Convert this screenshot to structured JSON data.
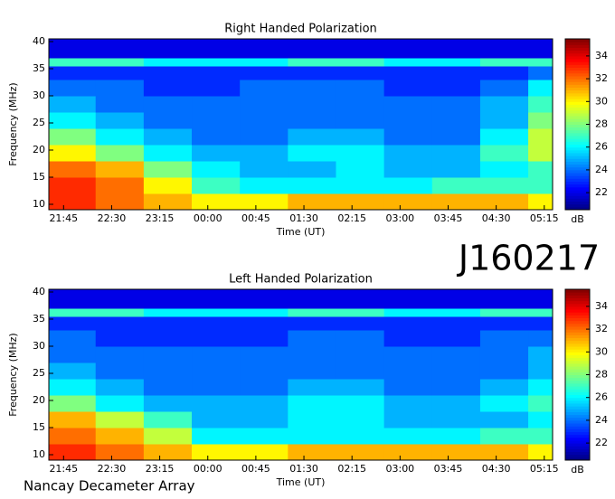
{
  "observation_id": "J160217",
  "instrument": "Nancay Decameter Array",
  "chart_data": [
    {
      "type": "heatmap",
      "title": "Right Handed Polarization",
      "xlabel": "Time (UT)",
      "ylabel": "Frequency (MHz)",
      "colorbar_label": "dB",
      "x_bins": [
        21.52,
        22.25,
        23.0,
        23.75,
        24.5,
        25.25,
        26.0,
        26.75,
        27.5,
        28.25,
        29.0,
        29.38
      ],
      "y_bins": [
        9,
        12,
        15,
        18,
        21,
        24,
        27,
        30,
        33,
        35.5,
        37,
        40.5
      ],
      "z": [
        [
          33,
          32,
          31,
          30,
          30,
          31,
          31,
          31,
          31,
          31,
          30
        ],
        [
          33,
          32,
          30,
          27,
          26,
          26,
          26,
          26,
          27,
          27,
          27
        ],
        [
          32,
          31,
          28,
          26,
          25,
          25,
          26,
          25,
          25,
          26,
          27
        ],
        [
          30,
          28,
          26,
          25,
          25,
          26,
          26,
          25,
          25,
          27,
          29
        ],
        [
          28,
          26,
          25,
          24,
          24,
          25,
          25,
          24,
          24,
          26,
          29
        ],
        [
          26,
          25,
          24,
          24,
          24,
          24,
          24,
          24,
          24,
          25,
          28
        ],
        [
          25,
          24,
          24,
          24,
          24,
          24,
          24,
          24,
          24,
          25,
          27
        ],
        [
          24,
          24,
          23,
          23,
          24,
          24,
          24,
          23,
          23,
          24,
          26
        ],
        [
          23,
          23,
          23,
          23,
          23,
          23,
          23,
          23,
          23,
          23,
          24
        ],
        [
          27,
          27,
          26,
          26,
          26,
          27,
          27,
          26,
          26,
          27,
          27
        ],
        [
          22,
          22,
          22,
          22,
          22,
          22,
          22,
          22,
          22,
          22,
          22
        ]
      ],
      "xlim": [
        21.52,
        29.38
      ],
      "ylim": [
        9,
        40.5
      ],
      "zlim": [
        20.5,
        35.5
      ],
      "xticks": [
        {
          "value": 21.75,
          "label": "21:45"
        },
        {
          "value": 22.5,
          "label": "22:30"
        },
        {
          "value": 23.25,
          "label": "23:15"
        },
        {
          "value": 24.0,
          "label": "00:00"
        },
        {
          "value": 24.75,
          "label": "00:45"
        },
        {
          "value": 25.5,
          "label": "01:30"
        },
        {
          "value": 26.25,
          "label": "02:15"
        },
        {
          "value": 27.0,
          "label": "03:00"
        },
        {
          "value": 27.75,
          "label": "03:45"
        },
        {
          "value": 28.5,
          "label": "04:30"
        },
        {
          "value": 29.25,
          "label": "05:15"
        }
      ],
      "yticks": [
        10,
        15,
        20,
        25,
        30,
        35,
        40
      ],
      "zticks": [
        22,
        24,
        26,
        28,
        30,
        32,
        34
      ]
    },
    {
      "type": "heatmap",
      "title": "Left Handed Polarization",
      "xlabel": "Time (UT)",
      "ylabel": "Frequency (MHz)",
      "colorbar_label": "dB",
      "x_bins": [
        21.52,
        22.25,
        23.0,
        23.75,
        24.5,
        25.25,
        26.0,
        26.75,
        27.5,
        28.25,
        29.0,
        29.38
      ],
      "y_bins": [
        9,
        12,
        15,
        18,
        21,
        24,
        27,
        30,
        33,
        35.5,
        37,
        40.5
      ],
      "z": [
        [
          33,
          32,
          31,
          30,
          30,
          31,
          31,
          31,
          31,
          31,
          30
        ],
        [
          32,
          31,
          29,
          26,
          26,
          26,
          26,
          26,
          26,
          27,
          27
        ],
        [
          31,
          29,
          27,
          25,
          25,
          26,
          26,
          25,
          25,
          25,
          26
        ],
        [
          28,
          26,
          25,
          25,
          25,
          26,
          26,
          25,
          25,
          26,
          27
        ],
        [
          26,
          25,
          24,
          24,
          24,
          25,
          25,
          24,
          24,
          25,
          26
        ],
        [
          25,
          24,
          24,
          24,
          24,
          24,
          24,
          24,
          24,
          24,
          25
        ],
        [
          24,
          24,
          24,
          24,
          24,
          24,
          24,
          24,
          24,
          24,
          25
        ],
        [
          24,
          23,
          23,
          23,
          23,
          24,
          24,
          23,
          23,
          24,
          24
        ],
        [
          23,
          23,
          23,
          23,
          23,
          23,
          23,
          23,
          23,
          23,
          23
        ],
        [
          27,
          27,
          26,
          26,
          26,
          27,
          27,
          26,
          26,
          27,
          27
        ],
        [
          22,
          22,
          22,
          22,
          22,
          22,
          22,
          22,
          22,
          22,
          22
        ]
      ],
      "xlim": [
        21.52,
        29.38
      ],
      "ylim": [
        9,
        40.5
      ],
      "zlim": [
        20.5,
        35.5
      ],
      "xticks": [
        {
          "value": 21.75,
          "label": "21:45"
        },
        {
          "value": 22.5,
          "label": "22:30"
        },
        {
          "value": 23.25,
          "label": "23:15"
        },
        {
          "value": 24.0,
          "label": "00:00"
        },
        {
          "value": 24.75,
          "label": "00:45"
        },
        {
          "value": 25.5,
          "label": "01:30"
        },
        {
          "value": 26.25,
          "label": "02:15"
        },
        {
          "value": 27.0,
          "label": "03:00"
        },
        {
          "value": 27.75,
          "label": "03:45"
        },
        {
          "value": 28.5,
          "label": "04:30"
        },
        {
          "value": 29.25,
          "label": "05:15"
        }
      ],
      "yticks": [
        10,
        15,
        20,
        25,
        30,
        35,
        40
      ],
      "zticks": [
        22,
        24,
        26,
        28,
        30,
        32,
        34
      ]
    }
  ]
}
